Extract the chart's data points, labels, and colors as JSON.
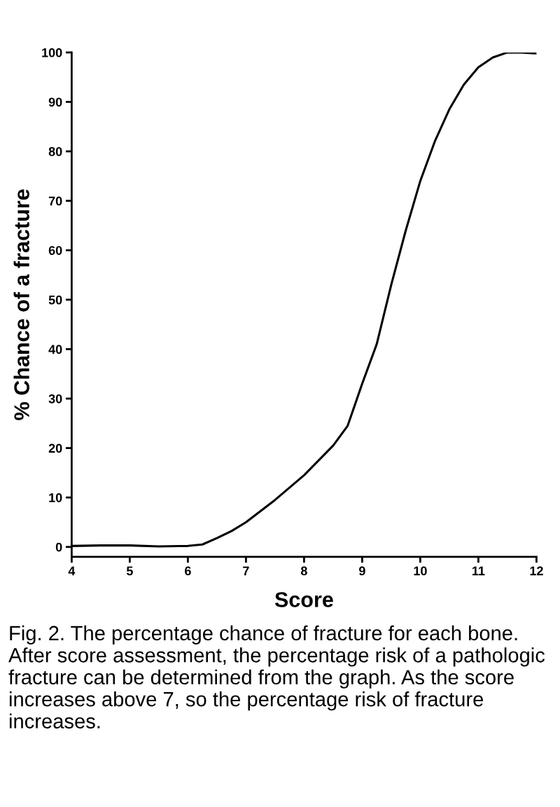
{
  "chart_data": {
    "type": "line",
    "xlabel": "Score",
    "ylabel": "% Chance of a fracture",
    "x": [
      4,
      4.5,
      5,
      5.5,
      6,
      6.25,
      6.5,
      6.75,
      7,
      7.5,
      8,
      8.5,
      8.75,
      9,
      9.25,
      9.5,
      9.75,
      10,
      10.25,
      10.5,
      10.75,
      11,
      11.25,
      11.5,
      11.75,
      12
    ],
    "series": [
      {
        "color": "#000000",
        "values": [
          0.2,
          0.3,
          0.3,
          0.1,
          0.2,
          0.5,
          1.8,
          3.2,
          5,
          9.5,
          14.5,
          20.5,
          24.5,
          33,
          41,
          53,
          64,
          74,
          82,
          88.5,
          93.5,
          97,
          99,
          100,
          100,
          99.8
        ]
      }
    ],
    "xlim": [
      4,
      12
    ],
    "ylim": [
      -2,
      100
    ],
    "xticks": [
      4,
      5,
      6,
      7,
      8,
      9,
      10,
      11,
      12
    ],
    "yticks": [
      0,
      10,
      20,
      30,
      40,
      50,
      60,
      70,
      80,
      90,
      100
    ],
    "grid": false,
    "legend": false,
    "marker": "none",
    "line_style": "solid",
    "annotations": [
      "Fig. 2. The percentage chance of fracture for each bone. After score assessment, the percentage risk of a pathologic fracture can be determined from the graph. As the score increases above 7, so the percentage risk of fracture increases."
    ]
  }
}
